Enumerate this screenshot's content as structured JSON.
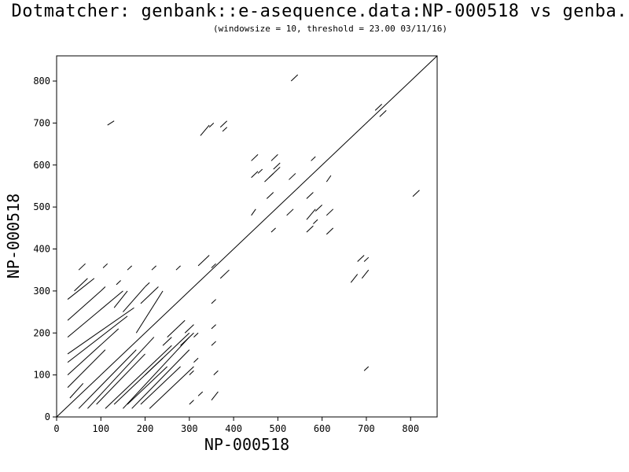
{
  "header": {
    "title": "Dotmatcher: genbank::e-asequence.data:NP-000518 vs genba...",
    "subtitle": "(windowsize = 10, threshold = 23.00  03/11/16)"
  },
  "chart_data": {
    "type": "line",
    "title": "Dotmatcher: genbank::e-asequence.data:NP-000518 vs genba...",
    "subtitle": "(windowsize = 10, threshold = 23.00  03/11/16)",
    "xlabel": "NP-000518",
    "ylabel": "NP-000518",
    "xlim": [
      0,
      860
    ],
    "ylim": [
      0,
      860
    ],
    "xticks": [
      0,
      100,
      200,
      300,
      400,
      500,
      600,
      700,
      800
    ],
    "yticks": [
      0,
      100,
      200,
      300,
      400,
      500,
      600,
      700,
      800
    ],
    "grid": false,
    "series": [
      {
        "segments": [
          [
            [
              0,
              0
            ],
            [
              860,
              860
            ]
          ],
          [
            [
              25,
              70
            ],
            [
              110,
              160
            ]
          ],
          [
            [
              25,
              100
            ],
            [
              140,
              210
            ]
          ],
          [
            [
              25,
              130
            ],
            [
              160,
              240
            ]
          ],
          [
            [
              25,
              150
            ],
            [
              175,
              260
            ]
          ],
          [
            [
              25,
              190
            ],
            [
              150,
              300
            ]
          ],
          [
            [
              25,
              230
            ],
            [
              100,
              300
            ]
          ],
          [
            [
              25,
              280
            ],
            [
              85,
              330
            ]
          ],
          [
            [
              30,
              45
            ],
            [
              60,
              80
            ]
          ],
          [
            [
              40,
              300
            ],
            [
              70,
              330
            ]
          ],
          [
            [
              50,
              350
            ],
            [
              65,
              365
            ]
          ],
          [
            [
              50,
              20
            ],
            [
              180,
              160
            ]
          ],
          [
            [
              70,
              20
            ],
            [
              220,
              190
            ]
          ],
          [
            [
              90,
              30
            ],
            [
              200,
              150
            ]
          ],
          [
            [
              110,
              20
            ],
            [
              260,
              170
            ]
          ],
          [
            [
              130,
              30
            ],
            [
              240,
              140
            ]
          ],
          [
            [
              150,
              20
            ],
            [
              300,
              190
            ]
          ],
          [
            [
              160,
              30
            ],
            [
              250,
              120
            ]
          ],
          [
            [
              170,
              20
            ],
            [
              300,
              160
            ]
          ],
          [
            [
              190,
              30
            ],
            [
              280,
              120
            ]
          ],
          [
            [
              200,
              100
            ],
            [
              300,
              200
            ]
          ],
          [
            [
              210,
              20
            ],
            [
              310,
              120
            ]
          ],
          [
            [
              130,
              260
            ],
            [
              160,
              300
            ]
          ],
          [
            [
              150,
              250
            ],
            [
              200,
              310
            ]
          ],
          [
            [
              180,
              200
            ],
            [
              240,
              300
            ]
          ],
          [
            [
              190,
              270
            ],
            [
              230,
              310
            ]
          ],
          [
            [
              200,
              310
            ],
            [
              210,
              320
            ]
          ],
          [
            [
              215,
              350
            ],
            [
              225,
              360
            ]
          ],
          [
            [
              100,
              300
            ],
            [
              110,
              310
            ]
          ],
          [
            [
              105,
              355
            ],
            [
              115,
              365
            ]
          ],
          [
            [
              135,
              315
            ],
            [
              145,
              325
            ]
          ],
          [
            [
              160,
              350
            ],
            [
              170,
              360
            ]
          ],
          [
            [
              270,
              350
            ],
            [
              280,
              360
            ]
          ],
          [
            [
              250,
              190
            ],
            [
              290,
              230
            ]
          ],
          [
            [
              240,
              170
            ],
            [
              260,
              190
            ]
          ],
          [
            [
              280,
              170
            ],
            [
              310,
              200
            ]
          ],
          [
            [
              290,
              200
            ],
            [
              310,
              220
            ]
          ],
          [
            [
              300,
              30
            ],
            [
              310,
              40
            ]
          ],
          [
            [
              300,
              100
            ],
            [
              310,
              110
            ]
          ],
          [
            [
              310,
              130
            ],
            [
              320,
              140
            ]
          ],
          [
            [
              310,
              190
            ],
            [
              320,
              200
            ]
          ],
          [
            [
              320,
              50
            ],
            [
              330,
              60
            ]
          ],
          [
            [
              350,
              40
            ],
            [
              365,
              60
            ]
          ],
          [
            [
              350,
              170
            ],
            [
              360,
              180
            ]
          ],
          [
            [
              350,
              210
            ],
            [
              360,
              220
            ]
          ],
          [
            [
              350,
              270
            ],
            [
              360,
              280
            ]
          ],
          [
            [
              355,
              100
            ],
            [
              365,
              110
            ]
          ],
          [
            [
              320,
              360
            ],
            [
              345,
              385
            ]
          ],
          [
            [
              350,
              355
            ],
            [
              360,
              365
            ]
          ],
          [
            [
              370,
              330
            ],
            [
              390,
              350
            ]
          ],
          [
            [
              325,
              670
            ],
            [
              345,
              695
            ]
          ],
          [
            [
              345,
              690
            ],
            [
              355,
              700
            ]
          ],
          [
            [
              370,
              690
            ],
            [
              385,
              705
            ]
          ],
          [
            [
              375,
              680
            ],
            [
              385,
              690
            ]
          ],
          [
            [
              115,
              695
            ],
            [
              130,
              705
            ]
          ],
          [
            [
              530,
              800
            ],
            [
              545,
              815
            ]
          ],
          [
            [
              720,
              730
            ],
            [
              735,
              745
            ]
          ],
          [
            [
              730,
              715
            ],
            [
              745,
              730
            ]
          ],
          [
            [
              805,
              525
            ],
            [
              820,
              540
            ]
          ],
          [
            [
              440,
              480
            ],
            [
              450,
              495
            ]
          ],
          [
            [
              440,
              570
            ],
            [
              455,
              585
            ]
          ],
          [
            [
              440,
              610
            ],
            [
              455,
              625
            ]
          ],
          [
            [
              455,
              580
            ],
            [
              465,
              590
            ]
          ],
          [
            [
              470,
              560
            ],
            [
              490,
              580
            ]
          ],
          [
            [
              475,
              520
            ],
            [
              490,
              535
            ]
          ],
          [
            [
              480,
              570
            ],
            [
              505,
              595
            ]
          ],
          [
            [
              485,
              610
            ],
            [
              500,
              625
            ]
          ],
          [
            [
              490,
              590
            ],
            [
              505,
              605
            ]
          ],
          [
            [
              485,
              440
            ],
            [
              495,
              450
            ]
          ],
          [
            [
              520,
              480
            ],
            [
              535,
              495
            ]
          ],
          [
            [
              525,
              565
            ],
            [
              540,
              580
            ]
          ],
          [
            [
              565,
              470
            ],
            [
              585,
              495
            ]
          ],
          [
            [
              565,
              440
            ],
            [
              580,
              455
            ]
          ],
          [
            [
              575,
              610
            ],
            [
              585,
              620
            ]
          ],
          [
            [
              565,
              520
            ],
            [
              580,
              535
            ]
          ],
          [
            [
              580,
              460
            ],
            [
              590,
              470
            ]
          ],
          [
            [
              585,
              490
            ],
            [
              600,
              505
            ]
          ],
          [
            [
              610,
              560
            ],
            [
              620,
              575
            ]
          ],
          [
            [
              610,
              435
            ],
            [
              625,
              450
            ]
          ],
          [
            [
              610,
              480
            ],
            [
              625,
              495
            ]
          ],
          [
            [
              665,
              320
            ],
            [
              680,
              340
            ]
          ],
          [
            [
              680,
              370
            ],
            [
              695,
              385
            ]
          ],
          [
            [
              690,
              330
            ],
            [
              705,
              350
            ]
          ],
          [
            [
              695,
              370
            ],
            [
              705,
              380
            ]
          ],
          [
            [
              695,
              110
            ],
            [
              705,
              120
            ]
          ]
        ]
      }
    ]
  }
}
